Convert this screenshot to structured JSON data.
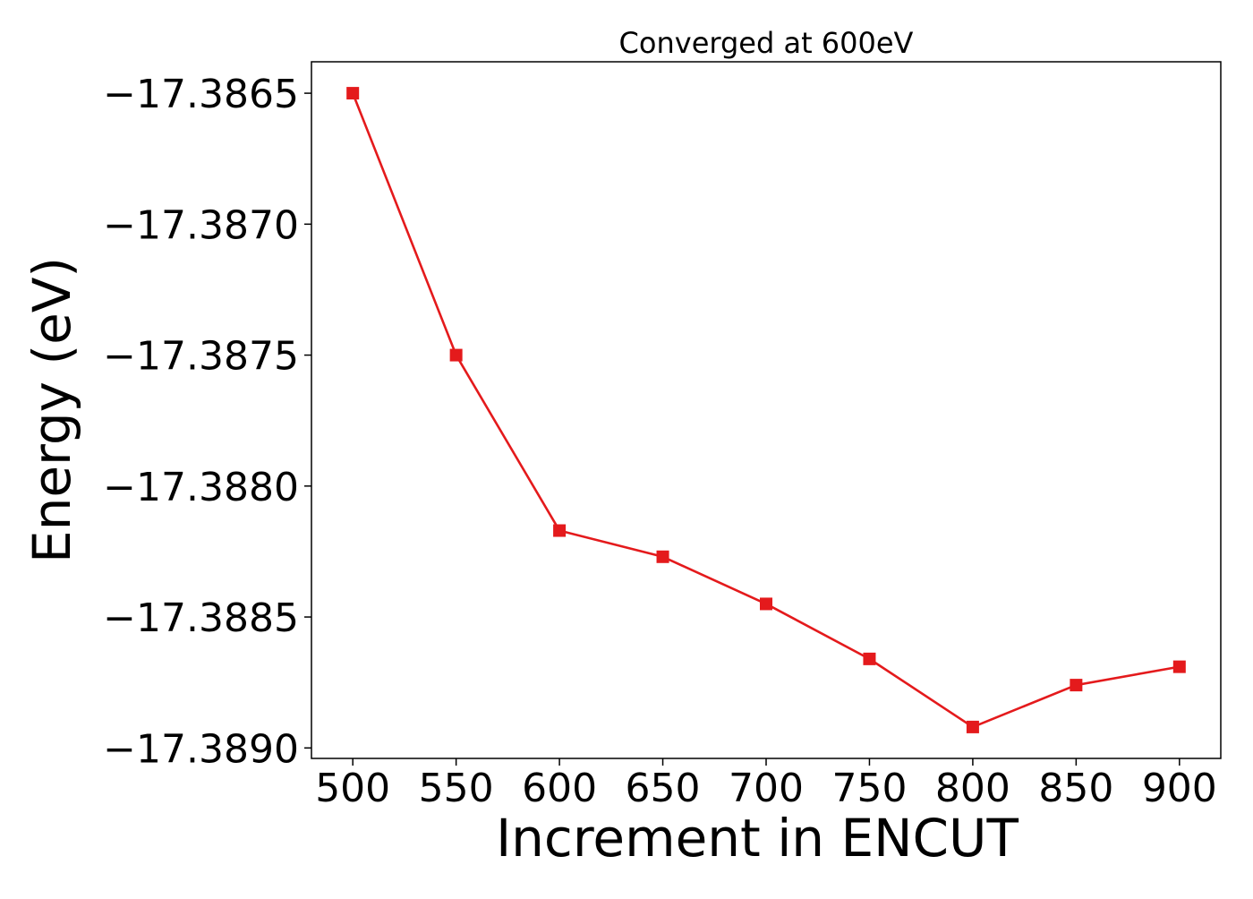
{
  "chart_data": {
    "type": "line",
    "title": "Converged at 600eV",
    "xlabel": "Increment in ENCUT",
    "ylabel": "Energy (eV)",
    "x": [
      500,
      550,
      600,
      650,
      700,
      750,
      800,
      850,
      900
    ],
    "series": [
      {
        "values": [
          -17.3865,
          -17.3875,
          -17.38817,
          -17.38827,
          -17.38845,
          -17.38866,
          -17.38892,
          -17.38876,
          -17.38869
        ],
        "color": "#e41a1c",
        "marker": "square"
      }
    ],
    "xticks": [
      500,
      550,
      600,
      650,
      700,
      750,
      800,
      850,
      900
    ],
    "xtick_labels": [
      "500",
      "550",
      "600",
      "650",
      "700",
      "750",
      "800",
      "850",
      "900"
    ],
    "yticks": [
      -17.3865,
      -17.387,
      -17.3875,
      -17.388,
      -17.3885,
      -17.389
    ],
    "ytick_labels": [
      "−17.3865",
      "−17.3870",
      "−17.3875",
      "−17.3880",
      "−17.3885",
      "−17.3890"
    ],
    "xlim": [
      480,
      920
    ],
    "ylim": [
      -17.38904,
      -17.38638
    ],
    "grid": false,
    "legend": "none"
  }
}
